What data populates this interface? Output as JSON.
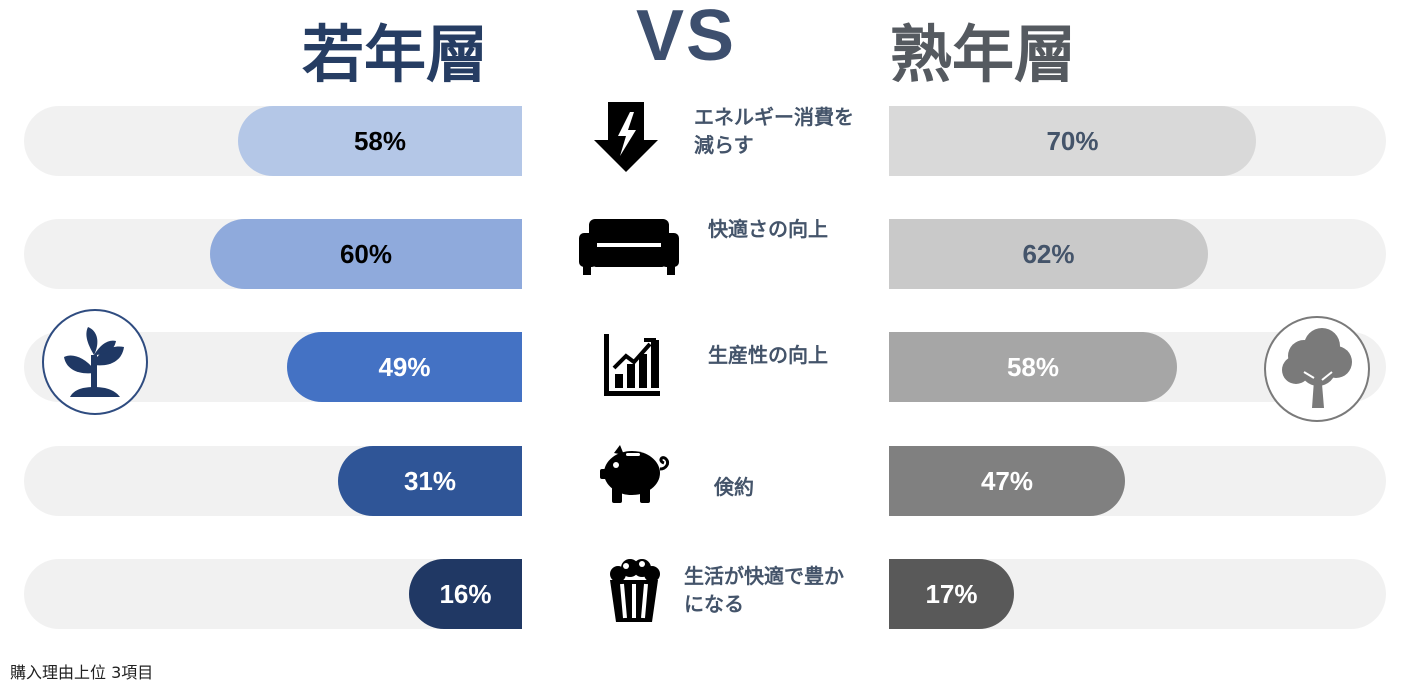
{
  "header": {
    "left_title": "若年層",
    "vs": "VS",
    "right_title": "熟年層"
  },
  "chart_data": {
    "type": "bar",
    "categories": [
      "エネルギー消費を\n減らす",
      "快適さの向上",
      "生産性の向上",
      "倹約",
      "生活が快適で豊か\nになる"
    ],
    "series": [
      {
        "name": "若年層",
        "values": [
          58,
          60,
          49,
          31,
          16
        ],
        "labels": [
          "58%",
          "60%",
          "49%",
          "31%",
          "16%"
        ]
      },
      {
        "name": "熟年層",
        "values": [
          70,
          62,
          58,
          47,
          17
        ],
        "labels": [
          "70%",
          "62%",
          "58%",
          "47%",
          "17%"
        ]
      }
    ],
    "ylim": [
      0,
      100
    ],
    "left_colors": [
      "#b4c7e7",
      "#8faadc",
      "#4472c4",
      "#2f5597",
      "#203864"
    ],
    "right_colors": [
      "#d9d9d9",
      "#c9c9c9",
      "#a6a6a6",
      "#808080",
      "#595959"
    ],
    "left_label_colors": [
      "#000000",
      "#000000",
      "#ffffff",
      "#ffffff",
      "#ffffff"
    ],
    "right_label_colors": [
      "#44546a",
      "#44546a",
      "#ffffff",
      "#ffffff",
      "#ffffff"
    ],
    "track_color": "#f1f1f1"
  },
  "icons": [
    "energy-down-icon",
    "sofa-icon",
    "bar-chart-icon",
    "piggy-bank-icon",
    "popcorn-icon"
  ],
  "badges": {
    "left": "sprout-icon",
    "right": "tree-icon"
  },
  "footnote": "購入理由上位 3項目"
}
